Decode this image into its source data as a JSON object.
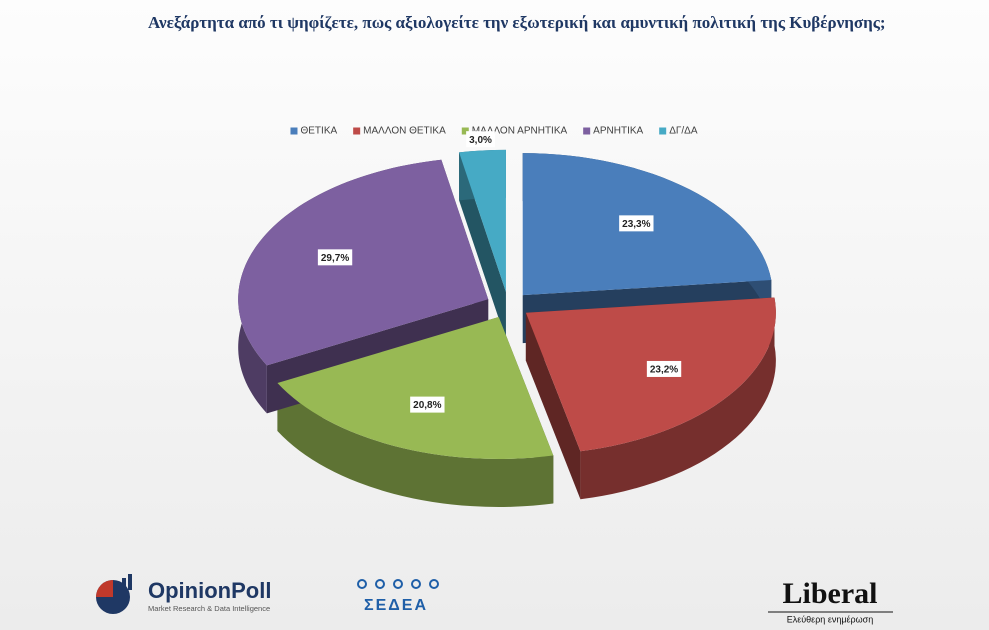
{
  "chart_data": {
    "type": "pie3d",
    "title": "Ανεξάρτητα από τι ψηφίζετε, πως αξιολογείτε την εξωτερική και αμυντική πολιτική της Κυβέρνησης;",
    "categories": [
      "ΘΕΤΙΚΑ",
      "ΜΑΛΛΟΝ ΘΕΤΙΚΑ",
      "ΜΑΛΛΟΝ ΑΡΝΗΤΙΚΑ",
      "ΑΡΝΗΤΙΚΑ",
      "ΔΓ/ΔΑ"
    ],
    "values": [
      23.3,
      23.2,
      20.8,
      29.7,
      3.0
    ],
    "value_labels": [
      "23,3%",
      "23,2%",
      "20,8%",
      "29,7%",
      "3,0%"
    ],
    "colors": [
      "#4a7ebb",
      "#be4b48",
      "#98b954",
      "#7d60a0",
      "#46aac5"
    ],
    "legend": "top"
  },
  "footer": {
    "opinionpoll": "OpinionPoll",
    "opinionpoll_tagline": "Market Research & Data Intelligence",
    "sedea": "ΣΕΔΕΑ",
    "liberal": "Liberal",
    "liberal_tagline": "Ελεύθερη ενημέρωση"
  }
}
